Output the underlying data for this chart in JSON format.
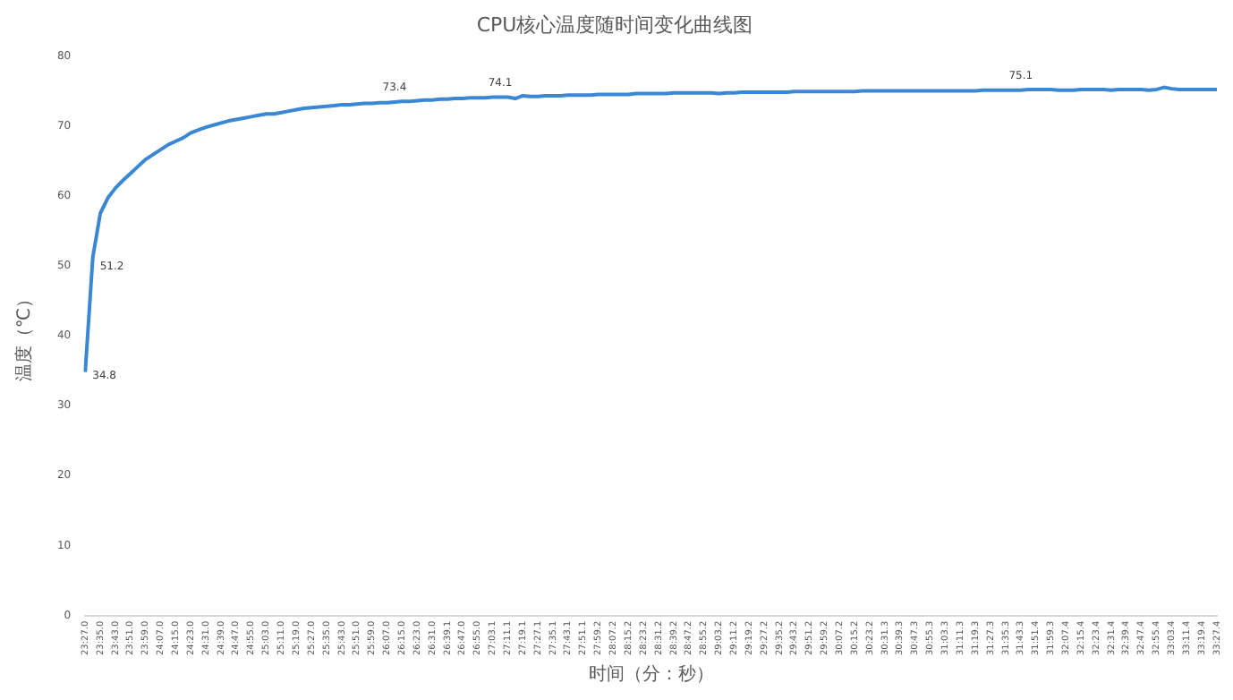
{
  "chart_data": {
    "type": "line",
    "title": "CPU核心温度随时间变化曲线图",
    "xlabel": "时间（分：秒）",
    "ylabel": "温度（℃）",
    "categories": [
      "23:27.0",
      null,
      "23:35.0",
      null,
      "23:43.0",
      null,
      "23:51.0",
      null,
      "23:59.0",
      null,
      "24:07.0",
      null,
      "24:15.0",
      null,
      "24:23.0",
      null,
      "24:31.0",
      null,
      "24:39.0",
      null,
      "24:47.0",
      null,
      "24:55.0",
      null,
      "25:03.0",
      null,
      "25:11.0",
      null,
      "25:19.0",
      null,
      "25:27.0",
      null,
      "25:35.0",
      null,
      "25:43.0",
      null,
      "25:51.0",
      null,
      "25:59.0",
      null,
      "26:07.0",
      null,
      "26:15.0",
      null,
      "26:23.0",
      null,
      "26:31.0",
      null,
      "26:39.1",
      null,
      "26:47.0",
      null,
      "26:55.0",
      null,
      "27:03.1",
      null,
      "27:11.1",
      null,
      "27:19.1",
      null,
      "27:27.1",
      null,
      "27:35.1",
      null,
      "27:43.1",
      null,
      "27:51.1",
      null,
      "27:59.2",
      null,
      "28:07.2",
      null,
      "28:15.2",
      null,
      "28:23.2",
      null,
      "28:31.2",
      null,
      "28:39.2",
      null,
      "28:47.2",
      null,
      "28:55.2",
      null,
      "29:03.2",
      null,
      "29:11.2",
      null,
      "29:19.2",
      null,
      "29:27.2",
      null,
      "29:35.2",
      null,
      "29:43.2",
      null,
      "29:51.2",
      null,
      "29:59.2",
      null,
      "30:07.2",
      null,
      "30:15.2",
      null,
      "30:23.2",
      null,
      "30:31.3",
      null,
      "30:39.3",
      null,
      "30:47.3",
      null,
      "30:55.3",
      null,
      "31:03.3",
      null,
      "31:11.3",
      null,
      "31:19.3",
      null,
      "31:27.3",
      null,
      "31:35.3",
      null,
      "31:43.3",
      null,
      "31:51.4",
      null,
      "31:59.3",
      null,
      "32:07.4",
      null,
      "32:15.4",
      null,
      "32:23.4",
      null,
      "32:31.4",
      null,
      "32:39.4",
      null,
      "32:47.4",
      null,
      "32:55.4",
      null,
      "33:03.4",
      null,
      "33:11.4",
      null,
      "33:19.4",
      null,
      "33:27.4"
    ],
    "series": [
      {
        "color": "#3a87d4",
        "values": [
          34.8,
          51.2,
          57.5,
          59.7,
          61.1,
          62.2,
          63.2,
          64.2,
          65.2,
          65.9,
          66.6,
          67.3,
          67.8,
          68.3,
          69.0,
          69.4,
          69.8,
          70.1,
          70.4,
          70.7,
          70.9,
          71.1,
          71.3,
          71.5,
          71.7,
          71.7,
          71.9,
          72.1,
          72.3,
          72.5,
          72.6,
          72.7,
          72.8,
          72.9,
          73.0,
          73.0,
          73.1,
          73.2,
          73.2,
          73.3,
          73.3,
          73.4,
          73.5,
          73.5,
          73.6,
          73.7,
          73.7,
          73.8,
          73.8,
          73.9,
          73.9,
          74.0,
          74.0,
          74.0,
          74.1,
          74.1,
          74.1,
          73.9,
          74.3,
          74.2,
          74.2,
          74.3,
          74.3,
          74.3,
          74.4,
          74.4,
          74.4,
          74.4,
          74.5,
          74.5,
          74.5,
          74.5,
          74.5,
          74.6,
          74.6,
          74.6,
          74.6,
          74.6,
          74.7,
          74.7,
          74.7,
          74.7,
          74.7,
          74.7,
          74.6,
          74.7,
          74.7,
          74.8,
          74.8,
          74.8,
          74.8,
          74.8,
          74.8,
          74.8,
          74.9,
          74.9,
          74.9,
          74.9,
          74.9,
          74.9,
          74.9,
          74.9,
          74.9,
          75.0,
          75.0,
          75.0,
          75.0,
          75.0,
          75.0,
          75.0,
          75.0,
          75.0,
          75.0,
          75.0,
          75.0,
          75.0,
          75.0,
          75.0,
          75.0,
          75.1,
          75.1,
          75.1,
          75.1,
          75.1,
          75.1,
          75.2,
          75.2,
          75.2,
          75.2,
          75.1,
          75.1,
          75.1,
          75.2,
          75.2,
          75.2,
          75.2,
          75.1,
          75.2,
          75.2,
          75.2,
          75.2,
          75.1,
          75.2,
          75.5,
          75.3,
          75.2,
          75.2,
          75.2,
          75.2,
          75.2,
          75.2
        ],
        "value_labels": [
          "34.8",
          "51.2",
          null,
          null,
          null,
          null,
          null,
          null,
          null,
          null,
          null,
          null,
          null,
          null,
          null,
          null,
          null,
          null,
          null,
          null,
          null,
          null,
          null,
          null,
          null,
          null,
          null,
          null,
          null,
          null,
          null,
          null,
          null,
          null,
          null,
          null,
          null,
          null,
          null,
          null,
          null,
          "73.4",
          null,
          null,
          null,
          null,
          null,
          null,
          null,
          null,
          null,
          null,
          null,
          null,
          null,
          "74.1",
          null,
          null,
          null,
          null,
          null,
          null,
          null,
          null,
          null,
          null,
          null,
          null,
          null,
          null,
          null,
          null,
          null,
          null,
          null,
          null,
          null,
          null,
          null,
          null,
          null,
          null,
          null,
          null,
          null,
          null,
          null,
          null,
          null,
          null,
          null,
          null,
          null,
          null,
          null,
          null,
          null,
          null,
          null,
          null,
          null,
          null,
          null,
          null,
          null,
          null,
          null,
          null,
          null,
          null,
          null,
          null,
          null,
          null,
          null,
          null,
          null,
          null,
          null,
          null,
          null,
          null,
          null,
          null,
          "75.1",
          null,
          null,
          null,
          null,
          null,
          null,
          null,
          null,
          null,
          null,
          null,
          null,
          null,
          null,
          null,
          null,
          null,
          null,
          null,
          null,
          null,
          null,
          null,
          null,
          null,
          null
        ]
      }
    ],
    "ylim": [
      0,
      80
    ],
    "yticks": [
      0,
      10,
      20,
      30,
      40,
      50,
      60,
      70,
      80
    ],
    "grid": false
  }
}
